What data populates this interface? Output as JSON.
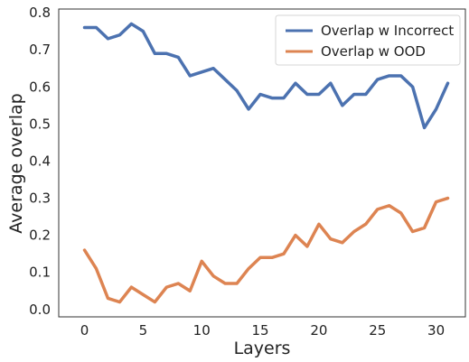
{
  "chart_data": {
    "type": "line",
    "title": "",
    "xlabel": "Layers",
    "ylabel": "Average overlap",
    "xlim": [
      -2.2,
      32.5
    ],
    "ylim": [
      -0.02,
      0.81
    ],
    "xticks": [
      0,
      5,
      10,
      15,
      20,
      25,
      30
    ],
    "yticks": [
      0.0,
      0.1,
      0.2,
      0.3,
      0.4,
      0.5,
      0.6,
      0.7,
      0.8
    ],
    "grid": false,
    "legend_position": "top-right",
    "x": [
      0,
      1,
      2,
      3,
      4,
      5,
      6,
      7,
      8,
      9,
      10,
      11,
      12,
      13,
      14,
      15,
      16,
      17,
      18,
      19,
      20,
      21,
      22,
      23,
      24,
      25,
      26,
      27,
      28,
      29,
      30,
      31
    ],
    "series": [
      {
        "name": "Overlap w Incorrect",
        "color": "#4c72b0",
        "values": [
          0.76,
          0.76,
          0.73,
          0.74,
          0.77,
          0.75,
          0.69,
          0.69,
          0.68,
          0.63,
          0.64,
          0.65,
          0.62,
          0.59,
          0.54,
          0.58,
          0.57,
          0.57,
          0.61,
          0.58,
          0.58,
          0.61,
          0.55,
          0.58,
          0.58,
          0.62,
          0.63,
          0.63,
          0.6,
          0.49,
          0.54,
          0.61
        ]
      },
      {
        "name": "Overlap w OOD",
        "color": "#dd8452",
        "values": [
          0.16,
          0.11,
          0.03,
          0.02,
          0.06,
          0.04,
          0.02,
          0.06,
          0.07,
          0.05,
          0.13,
          0.09,
          0.07,
          0.07,
          0.11,
          0.14,
          0.14,
          0.15,
          0.2,
          0.17,
          0.23,
          0.19,
          0.18,
          0.21,
          0.23,
          0.27,
          0.28,
          0.26,
          0.21,
          0.22,
          0.29,
          0.3
        ]
      }
    ]
  }
}
